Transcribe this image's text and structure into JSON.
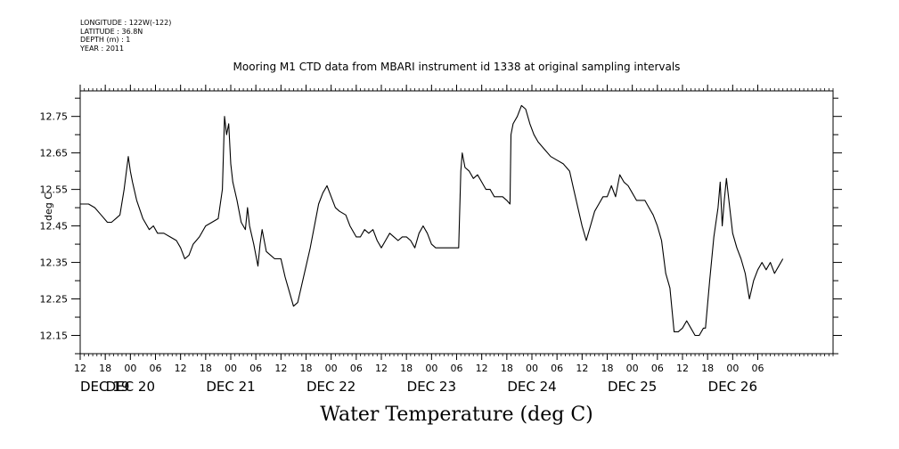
{
  "meta": {
    "longitude": "LONGITUDE : 122W(-122)",
    "latitude": "LATITUDE : 36.8N",
    "depth": "DEPTH (m) : 1",
    "year": "YEAR : 2011"
  },
  "chart_data": {
    "type": "line",
    "title": "Mooring M1 CTD data from MBARI instrument id 1338 at original sampling intervals",
    "xlabel": "Water Temperature (deg C)",
    "ylabel": "deg C",
    "ylim": [
      12.1,
      12.82
    ],
    "yticks": [
      "12.15",
      "12.25",
      "12.35",
      "12.45",
      "12.55",
      "12.65",
      "12.75"
    ],
    "xlim_hours": [
      12,
      192
    ],
    "hour_ticks": [
      "12",
      "18",
      "00",
      "06",
      "12",
      "18",
      "00",
      "06",
      "12",
      "18",
      "00",
      "06",
      "12",
      "18",
      "00",
      "06",
      "12",
      "18",
      "00",
      "06",
      "12",
      "18",
      "00",
      "06",
      "12",
      "18",
      "00",
      "06"
    ],
    "date_labels": [
      "DEC 19",
      "DEC 20",
      "DEC 21",
      "DEC 22",
      "DEC 23",
      "DEC 24",
      "DEC 25",
      "DEC 26"
    ],
    "series": [
      {
        "values": [
          [
            "DEC 19 12:00",
            12.51
          ],
          [
            "DEC 19 14:00",
            12.51
          ],
          [
            "DEC 19 15:30",
            12.5
          ],
          [
            "DEC 19 17:00",
            12.48
          ],
          [
            "DEC 19 18:30",
            12.46
          ],
          [
            "DEC 19 19:30",
            12.46
          ],
          [
            "DEC 19 20:30",
            12.47
          ],
          [
            "DEC 19 21:30",
            12.48
          ],
          [
            "DEC 19 22:30",
            12.55
          ],
          [
            "DEC 19 23:30",
            12.64
          ],
          [
            "DEC 20 00:00",
            12.6
          ],
          [
            "DEC 20 00:30",
            12.57
          ],
          [
            "DEC 20 01:30",
            12.52
          ],
          [
            "DEC 20 03:00",
            12.47
          ],
          [
            "DEC 20 04:30",
            12.44
          ],
          [
            "DEC 20 05:30",
            12.45
          ],
          [
            "DEC 20 06:30",
            12.43
          ],
          [
            "DEC 20 08:00",
            12.43
          ],
          [
            "DEC 20 09:30",
            12.42
          ],
          [
            "DEC 20 11:00",
            12.41
          ],
          [
            "DEC 20 12:00",
            12.39
          ],
          [
            "DEC 20 13:00",
            12.36
          ],
          [
            "DEC 20 14:00",
            12.37
          ],
          [
            "DEC 20 15:00",
            12.4
          ],
          [
            "DEC 20 16:30",
            12.42
          ],
          [
            "DEC 20 18:00",
            12.45
          ],
          [
            "DEC 20 19:30",
            12.46
          ],
          [
            "DEC 20 21:00",
            12.47
          ],
          [
            "DEC 20 22:00",
            12.55
          ],
          [
            "DEC 20 22:30",
            12.75
          ],
          [
            "DEC 20 23:00",
            12.7
          ],
          [
            "DEC 20 23:30",
            12.73
          ],
          [
            "DEC 21 00:00",
            12.62
          ],
          [
            "DEC 21 00:30",
            12.57
          ],
          [
            "DEC 21 01:30",
            12.52
          ],
          [
            "DEC 21 02:30",
            12.46
          ],
          [
            "DEC 21 03:30",
            12.44
          ],
          [
            "DEC 21 04:00",
            12.5
          ],
          [
            "DEC 21 04:30",
            12.45
          ],
          [
            "DEC 21 05:30",
            12.4
          ],
          [
            "DEC 21 06:30",
            12.34
          ],
          [
            "DEC 21 07:00",
            12.4
          ],
          [
            "DEC 21 07:30",
            12.44
          ],
          [
            "DEC 21 08:30",
            12.38
          ],
          [
            "DEC 21 09:30",
            12.37
          ],
          [
            "DEC 21 10:30",
            12.36
          ],
          [
            "DEC 21 12:00",
            12.36
          ],
          [
            "DEC 21 13:00",
            12.31
          ],
          [
            "DEC 21 14:00",
            12.27
          ],
          [
            "DEC 21 15:00",
            12.23
          ],
          [
            "DEC 21 16:00",
            12.24
          ],
          [
            "DEC 21 17:00",
            12.29
          ],
          [
            "DEC 21 18:00",
            12.34
          ],
          [
            "DEC 21 19:00",
            12.39
          ],
          [
            "DEC 21 20:00",
            12.45
          ],
          [
            "DEC 21 21:00",
            12.51
          ],
          [
            "DEC 21 22:00",
            12.54
          ],
          [
            "DEC 21 23:00",
            12.56
          ],
          [
            "DEC 22 00:00",
            12.53
          ],
          [
            "DEC 22 01:00",
            12.5
          ],
          [
            "DEC 22 02:00",
            12.49
          ],
          [
            "DEC 22 03:30",
            12.48
          ],
          [
            "DEC 22 04:30",
            12.45
          ],
          [
            "DEC 22 06:00",
            12.42
          ],
          [
            "DEC 22 07:00",
            12.42
          ],
          [
            "DEC 22 08:00",
            12.44
          ],
          [
            "DEC 22 09:00",
            12.43
          ],
          [
            "DEC 22 10:00",
            12.44
          ],
          [
            "DEC 22 11:00",
            12.41
          ],
          [
            "DEC 22 12:00",
            12.39
          ],
          [
            "DEC 22 13:00",
            12.41
          ],
          [
            "DEC 22 14:00",
            12.43
          ],
          [
            "DEC 22 15:00",
            12.42
          ],
          [
            "DEC 22 16:00",
            12.41
          ],
          [
            "DEC 22 17:00",
            12.42
          ],
          [
            "DEC 22 18:00",
            12.42
          ],
          [
            "DEC 22 19:00",
            12.41
          ],
          [
            "DEC 22 20:00",
            12.39
          ],
          [
            "DEC 22 21:00",
            12.43
          ],
          [
            "DEC 22 22:00",
            12.45
          ],
          [
            "DEC 22 23:00",
            12.43
          ],
          [
            "DEC 23 00:00",
            12.4
          ],
          [
            "DEC 23 01:00",
            12.39
          ],
          [
            "DEC 23 02:00",
            12.39
          ],
          [
            "DEC 23 03:00",
            12.39
          ],
          [
            "DEC 23 04:00",
            12.39
          ],
          [
            "DEC 23 05:00",
            12.39
          ],
          [
            "DEC 23 06:00",
            12.39
          ],
          [
            "DEC 23 06:30",
            12.39
          ],
          [
            "DEC 23 07:00",
            12.6
          ],
          [
            "DEC 23 07:20",
            12.65
          ],
          [
            "DEC 23 08:00",
            12.61
          ],
          [
            "DEC 23 09:00",
            12.6
          ],
          [
            "DEC 23 10:00",
            12.58
          ],
          [
            "DEC 23 11:00",
            12.59
          ],
          [
            "DEC 23 12:00",
            12.57
          ],
          [
            "DEC 23 13:00",
            12.55
          ],
          [
            "DEC 23 14:00",
            12.55
          ],
          [
            "DEC 23 15:00",
            12.53
          ],
          [
            "DEC 23 16:00",
            12.53
          ],
          [
            "DEC 23 17:00",
            12.53
          ],
          [
            "DEC 23 18:00",
            12.52
          ],
          [
            "DEC 23 18:45",
            12.51
          ],
          [
            "DEC 23 19:00",
            12.7
          ],
          [
            "DEC 23 19:30",
            12.73
          ],
          [
            "DEC 23 20:30",
            12.75
          ],
          [
            "DEC 23 21:30",
            12.78
          ],
          [
            "DEC 23 22:30",
            12.77
          ],
          [
            "DEC 23 23:30",
            12.73
          ],
          [
            "DEC 24 00:30",
            12.7
          ],
          [
            "DEC 24 01:30",
            12.68
          ],
          [
            "DEC 24 03:00",
            12.66
          ],
          [
            "DEC 24 04:30",
            12.64
          ],
          [
            "DEC 24 06:00",
            12.63
          ],
          [
            "DEC 24 07:30",
            12.62
          ],
          [
            "DEC 24 09:00",
            12.6
          ],
          [
            "DEC 24 10:00",
            12.55
          ],
          [
            "DEC 24 11:00",
            12.5
          ],
          [
            "DEC 24 12:00",
            12.45
          ],
          [
            "DEC 24 13:00",
            12.41
          ],
          [
            "DEC 24 14:00",
            12.45
          ],
          [
            "DEC 24 15:00",
            12.49
          ],
          [
            "DEC 24 16:00",
            12.51
          ],
          [
            "DEC 24 17:00",
            12.53
          ],
          [
            "DEC 24 18:00",
            12.53
          ],
          [
            "DEC 24 19:00",
            12.56
          ],
          [
            "DEC 24 20:00",
            12.53
          ],
          [
            "DEC 24 21:00",
            12.59
          ],
          [
            "DEC 24 22:00",
            12.57
          ],
          [
            "DEC 24 23:00",
            12.56
          ],
          [
            "DEC 25 00:00",
            12.54
          ],
          [
            "DEC 25 01:00",
            12.52
          ],
          [
            "DEC 25 02:00",
            12.52
          ],
          [
            "DEC 25 03:00",
            12.52
          ],
          [
            "DEC 25 04:00",
            12.5
          ],
          [
            "DEC 25 05:00",
            12.48
          ],
          [
            "DEC 25 06:00",
            12.45
          ],
          [
            "DEC 25 07:00",
            12.41
          ],
          [
            "DEC 25 08:00",
            12.32
          ],
          [
            "DEC 25 09:00",
            12.28
          ],
          [
            "DEC 25 10:00",
            12.16
          ],
          [
            "DEC 25 11:00",
            12.16
          ],
          [
            "DEC 25 12:00",
            12.17
          ],
          [
            "DEC 25 13:00",
            12.19
          ],
          [
            "DEC 25 14:00",
            12.17
          ],
          [
            "DEC 25 15:00",
            12.15
          ],
          [
            "DEC 25 16:00",
            12.15
          ],
          [
            "DEC 25 17:00",
            12.17
          ],
          [
            "DEC 25 17:30",
            12.17
          ],
          [
            "DEC 25 18:30",
            12.3
          ],
          [
            "DEC 25 19:30",
            12.42
          ],
          [
            "DEC 25 20:30",
            12.5
          ],
          [
            "DEC 25 21:00",
            12.57
          ],
          [
            "DEC 25 21:30",
            12.45
          ],
          [
            "DEC 25 22:00",
            12.52
          ],
          [
            "DEC 25 22:30",
            12.58
          ],
          [
            "DEC 25 23:00",
            12.53
          ],
          [
            "DEC 26 00:00",
            12.43
          ],
          [
            "DEC 26 01:00",
            12.39
          ],
          [
            "DEC 26 02:00",
            12.36
          ],
          [
            "DEC 26 03:00",
            12.32
          ],
          [
            "DEC 26 04:00",
            12.25
          ],
          [
            "DEC 26 05:00",
            12.3
          ],
          [
            "DEC 26 06:00",
            12.33
          ],
          [
            "DEC 26 07:00",
            12.35
          ],
          [
            "DEC 26 08:00",
            12.33
          ],
          [
            "DEC 26 09:00",
            12.35
          ],
          [
            "DEC 26 10:00",
            12.32
          ],
          [
            "DEC 26 11:00",
            12.34
          ],
          [
            "DEC 26 12:00",
            12.36
          ]
        ]
      }
    ]
  }
}
